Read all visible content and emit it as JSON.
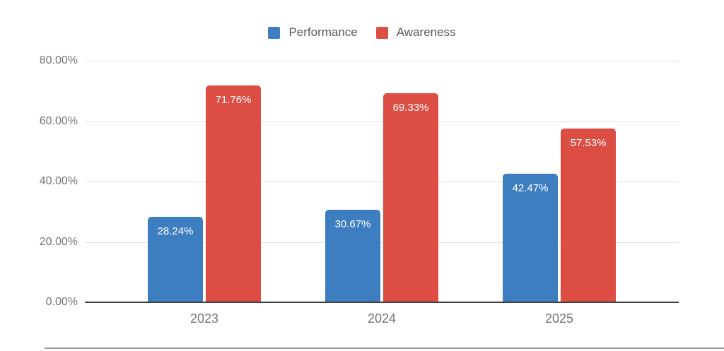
{
  "chart_data": {
    "type": "bar",
    "title": "",
    "xlabel": "",
    "ylabel": "",
    "categories": [
      "2023",
      "2024",
      "2025"
    ],
    "series": [
      {
        "name": "Performance",
        "color": "#3d7ec0",
        "values": [
          28.24,
          30.67,
          42.47
        ],
        "data_labels": [
          "28.24%",
          "30.67%",
          "42.47%"
        ]
      },
      {
        "name": "Awareness",
        "color": "#dc4d44",
        "values": [
          71.76,
          69.33,
          57.53
        ],
        "data_labels": [
          "71.76%",
          "69.33%",
          "57.53%"
        ]
      }
    ],
    "y_axis": {
      "min": 0,
      "max": 80,
      "tick_values": [
        0,
        20,
        40,
        60,
        80
      ],
      "tick_labels": [
        "0.00%",
        "20.00%",
        "40.00%",
        "60.00%",
        "80.00%"
      ]
    },
    "legend_position": "top",
    "grid": true,
    "data_label_position": "inside-top"
  },
  "colors": {
    "background": "#ffffff",
    "gridline": "#e2e2e2",
    "axis_line": "#424242",
    "axis_text": "#757575",
    "legend_text": "#58585a",
    "data_label_text": "#ffffff",
    "bottom_divider": "#9c9c9c"
  }
}
